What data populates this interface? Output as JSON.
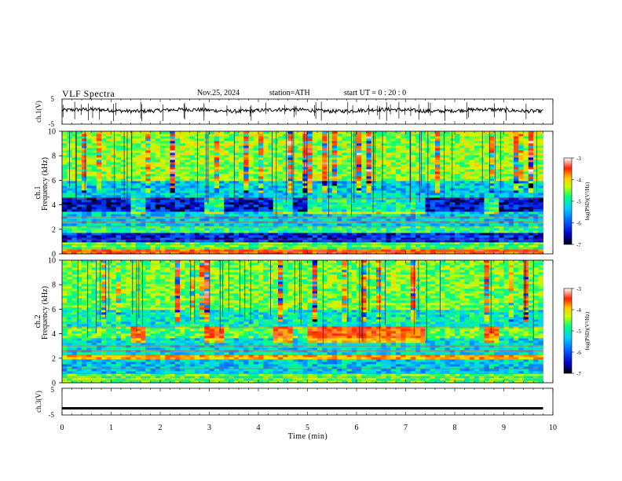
{
  "header": {
    "title": "VLF  Spectra",
    "date": "Nov.25, 2024",
    "station": "station=ATH",
    "start_ut": "start  UT  =   0  : 20 : 0"
  },
  "chart_data": [
    {
      "type": "line",
      "panel": "ch1-waveform",
      "ylabel": "ch.1(V)",
      "yticks": [
        "5",
        "-5"
      ],
      "ylim": [
        -5,
        5
      ],
      "x_range_min": [
        0,
        9.8
      ],
      "approx_level": 0.5,
      "description_values": {
        "mean": 0.5,
        "spread": 1.5
      }
    },
    {
      "type": "heatmap",
      "panel": "ch1-spectrogram",
      "ylabel": "ch.1\nFrequency  (kHz)",
      "ylabel_lines": [
        "ch.1",
        "Frequency  (kHz)"
      ],
      "yticks": [
        "0",
        "2",
        "4",
        "6",
        "8",
        "10"
      ],
      "ylim": [
        0,
        10
      ],
      "xlim": [
        0,
        10
      ],
      "data_x_end": 9.8,
      "colorbar": {
        "label": "log(PSD)(V²/Hz)",
        "ticks": [
          "-3",
          "-4",
          "-5",
          "-6",
          "-7"
        ],
        "range": [
          -7,
          -3
        ]
      },
      "bands_khz": [
        {
          "from": 0.0,
          "to": 0.3,
          "level": -3.8
        },
        {
          "from": 0.3,
          "to": 1.0,
          "level": -5.0
        },
        {
          "from": 1.0,
          "to": 1.8,
          "level": -6.4
        },
        {
          "from": 1.8,
          "to": 2.4,
          "level": -5.2
        },
        {
          "from": 2.4,
          "to": 3.4,
          "level": -5.6
        },
        {
          "from": 3.4,
          "to": 4.6,
          "level": -6.5
        },
        {
          "from": 4.6,
          "to": 6.0,
          "level": -5.6
        },
        {
          "from": 6.0,
          "to": 10.0,
          "level": -4.8
        }
      ],
      "bright_intervals_min": [
        [
          1.4,
          1.75
        ],
        [
          2.9,
          3.25
        ],
        [
          4.35,
          4.65
        ],
        [
          5.05,
          7.45
        ],
        [
          8.6,
          8.95
        ]
      ]
    },
    {
      "type": "heatmap",
      "panel": "ch2-spectrogram",
      "ylabel_lines": [
        "ch.2",
        "Frequency  (kHz)"
      ],
      "yticks": [
        "0",
        "2",
        "4",
        "6",
        "8",
        "10"
      ],
      "ylim": [
        0,
        10
      ],
      "xlim": [
        0,
        10
      ],
      "data_x_end": 9.8,
      "colorbar": {
        "label": "log(PSD)(V²/Hz)",
        "ticks": [
          "-3",
          "-4",
          "-5",
          "-6",
          "-7"
        ],
        "range": [
          -7,
          -3
        ]
      },
      "bands_khz": [
        {
          "from": 0.0,
          "to": 0.8,
          "level": -5.0
        },
        {
          "from": 0.8,
          "to": 2.0,
          "level": -5.6
        },
        {
          "from": 2.0,
          "to": 2.3,
          "level": -4.2
        },
        {
          "from": 2.3,
          "to": 3.6,
          "level": -5.5
        },
        {
          "from": 3.6,
          "to": 4.6,
          "level": -5.0
        },
        {
          "from": 4.6,
          "to": 6.0,
          "level": -5.4
        },
        {
          "from": 6.0,
          "to": 10.0,
          "level": -4.9
        }
      ],
      "bright_intervals_min": [
        [
          1.4,
          1.75
        ],
        [
          2.9,
          3.25
        ],
        [
          4.35,
          4.65
        ],
        [
          5.05,
          7.45
        ],
        [
          8.6,
          8.95
        ]
      ]
    },
    {
      "type": "line",
      "panel": "ch3-waveform",
      "ylabel": "ch.3(V)",
      "yticks": [
        "5",
        "-5"
      ],
      "ylim": [
        -5,
        5
      ],
      "approx_level": -2.5,
      "xlabel": "Time  (min)",
      "xticks": [
        "0",
        "1",
        "2",
        "3",
        "4",
        "5",
        "6",
        "7",
        "8",
        "9",
        "10"
      ],
      "xlim": [
        0,
        10
      ]
    }
  ],
  "colors": {
    "scale": [
      "#000000",
      "#0000c8",
      "#0050ff",
      "#00c8ff",
      "#00ff80",
      "#c0ff00",
      "#ffd000",
      "#ff3000",
      "#ffffff"
    ]
  }
}
